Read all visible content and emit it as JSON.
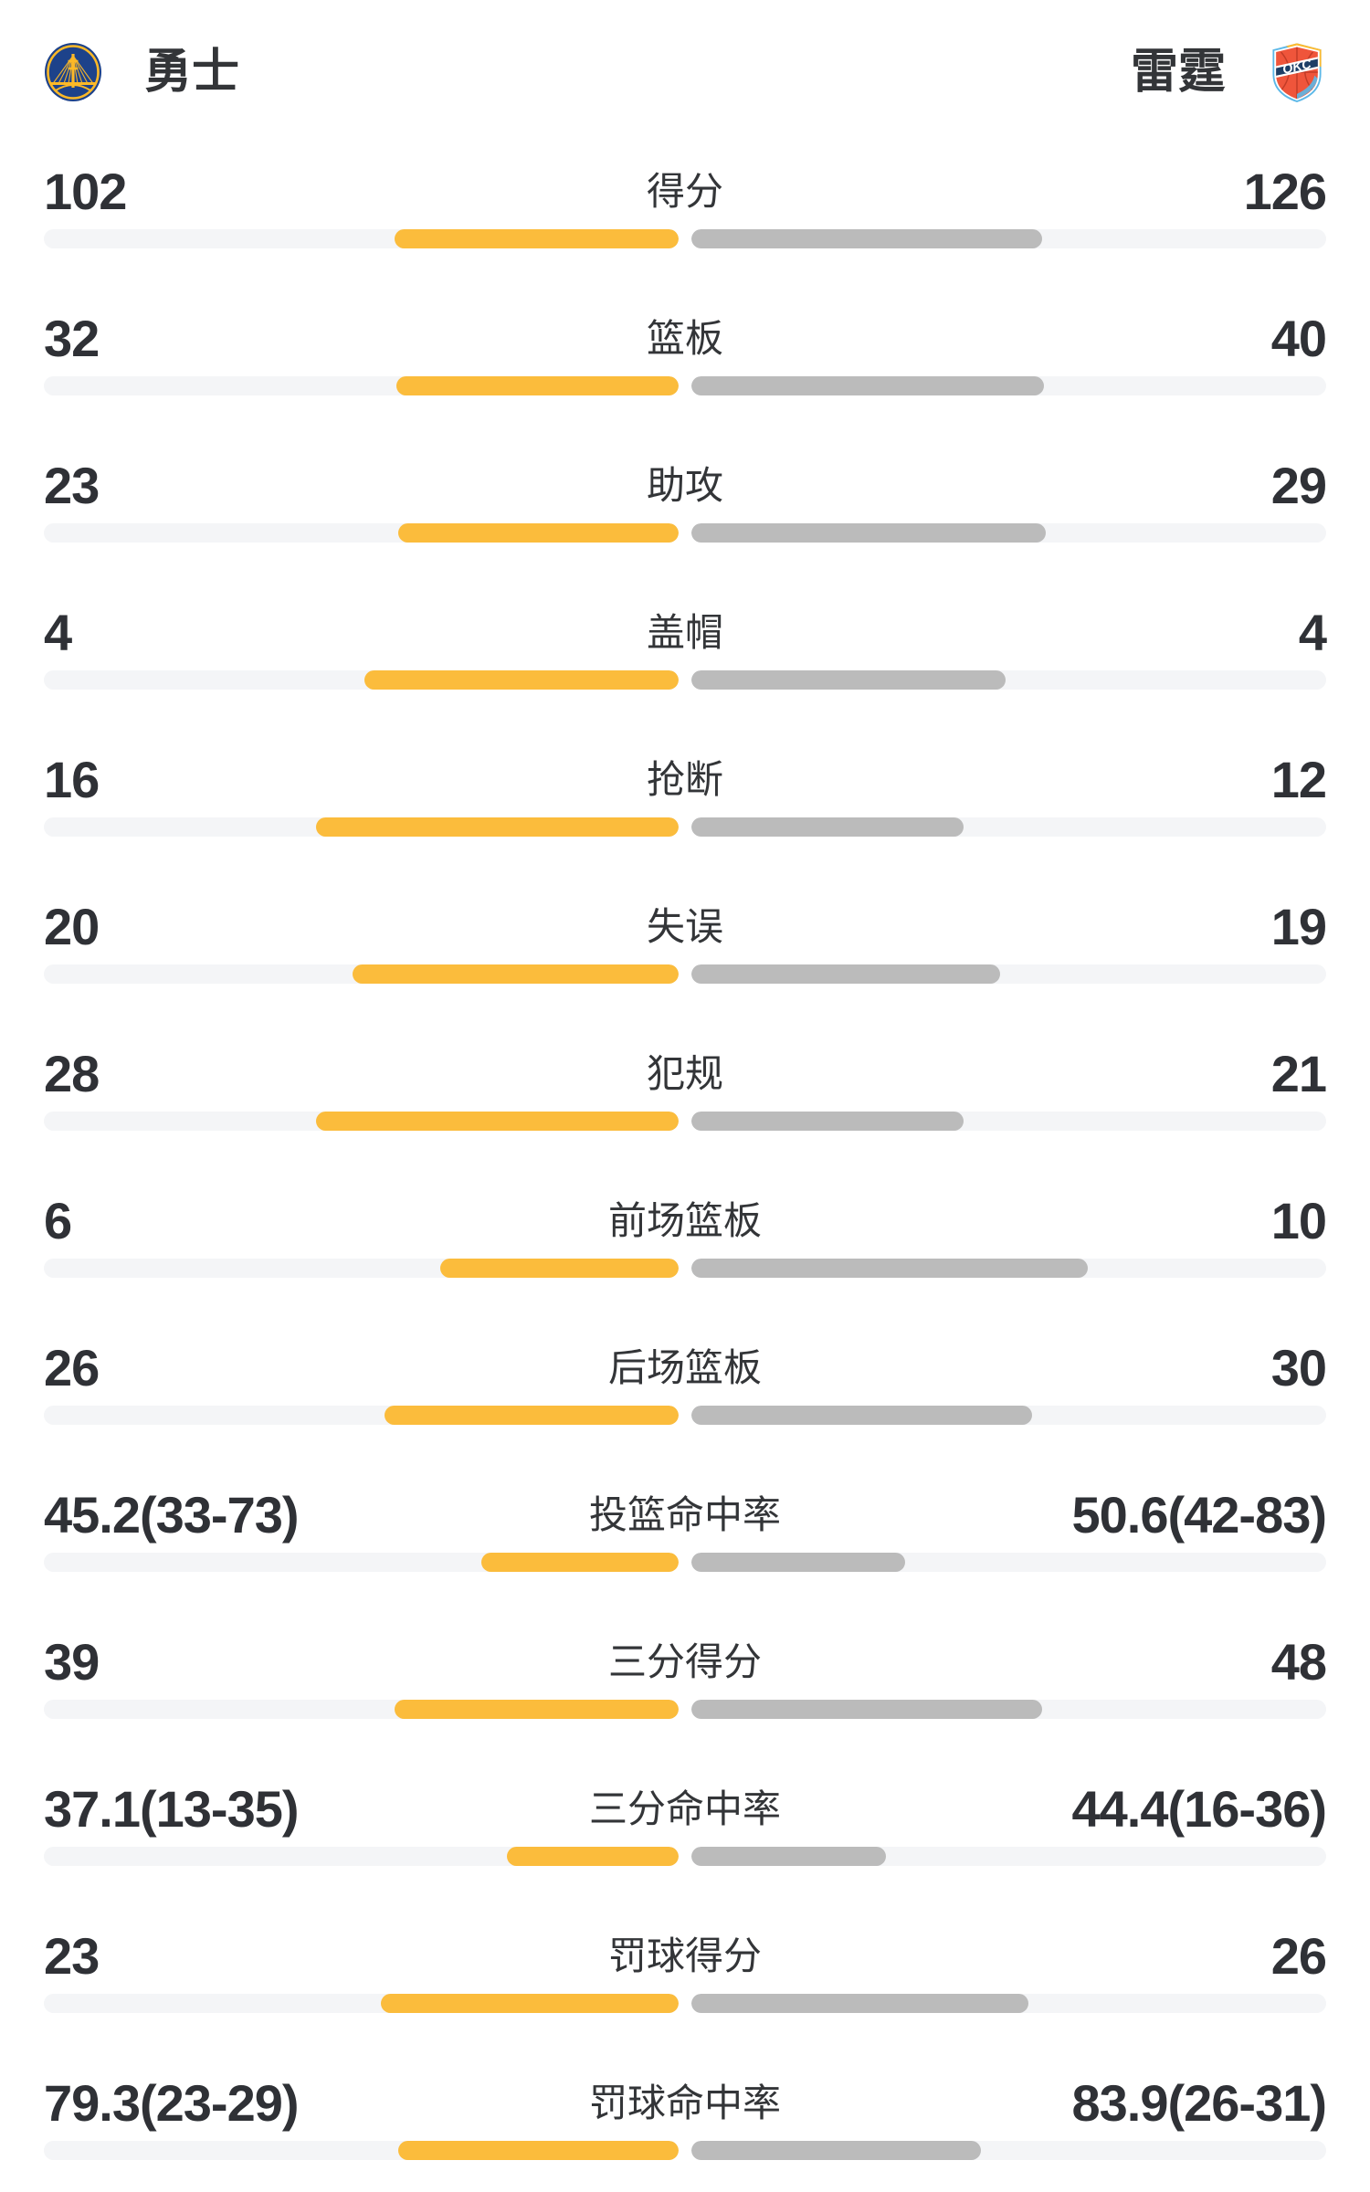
{
  "header": {
    "home": {
      "name": "勇士"
    },
    "away": {
      "name": "雷霆"
    }
  },
  "icons": {
    "home_logo": "warriors-bridge-crest",
    "away_logo": "okc-thunder-shield"
  },
  "colors": {
    "home_bar": "#fbbc3c",
    "away_bar": "#bbbbbb",
    "bar_track": "#f4f5f7",
    "text": "#2f3136",
    "warriors_blue": "#1d428a",
    "warriors_gold": "#fdb927",
    "okc_orange": "#ef553b",
    "okc_blue": "#5cb8e8",
    "okc_navy": "#1d3e66",
    "okc_yellow": "#fdbb30"
  },
  "stats": {
    "rows": [
      {
        "label": "得分",
        "home": "102",
        "away": "126",
        "home_bar_pct": 44.7,
        "away_bar_pct": 55.3
      },
      {
        "label": "篮板",
        "home": "32",
        "away": "40",
        "home_bar_pct": 44.4,
        "away_bar_pct": 55.6
      },
      {
        "label": "助攻",
        "home": "23",
        "away": "29",
        "home_bar_pct": 44.2,
        "away_bar_pct": 55.8
      },
      {
        "label": "盖帽",
        "home": "4",
        "away": "4",
        "home_bar_pct": 49.5,
        "away_bar_pct": 49.5
      },
      {
        "label": "抢断",
        "home": "16",
        "away": "12",
        "home_bar_pct": 57.1,
        "away_bar_pct": 42.9
      },
      {
        "label": "失误",
        "home": "20",
        "away": "19",
        "home_bar_pct": 51.3,
        "away_bar_pct": 48.7
      },
      {
        "label": "犯规",
        "home": "28",
        "away": "21",
        "home_bar_pct": 57.1,
        "away_bar_pct": 42.9
      },
      {
        "label": "前场篮板",
        "home": "6",
        "away": "10",
        "home_bar_pct": 37.5,
        "away_bar_pct": 62.5
      },
      {
        "label": "后场篮板",
        "home": "26",
        "away": "30",
        "home_bar_pct": 46.4,
        "away_bar_pct": 53.6
      },
      {
        "label": "投篮命中率",
        "home": "45.2(33-73)",
        "away": "50.6(42-83)",
        "home_bar_pct": 31.1,
        "away_bar_pct": 33.6
      },
      {
        "label": "三分得分",
        "home": "39",
        "away": "48",
        "home_bar_pct": 44.8,
        "away_bar_pct": 55.2
      },
      {
        "label": "三分命中率",
        "home": "37.1(13-35)",
        "away": "44.4(16-36)",
        "home_bar_pct": 27.1,
        "away_bar_pct": 30.7
      },
      {
        "label": "罚球得分",
        "home": "23",
        "away": "26",
        "home_bar_pct": 46.9,
        "away_bar_pct": 53.1
      },
      {
        "label": "罚球命中率",
        "home": "79.3(23-29)",
        "away": "83.9(26-31)",
        "home_bar_pct": 44.2,
        "away_bar_pct": 45.6
      }
    ]
  },
  "chart_data": {
    "type": "bar",
    "orientation": "paired-horizontal",
    "categories": [
      "得分",
      "篮板",
      "助攻",
      "盖帽",
      "抢断",
      "失误",
      "犯规",
      "前场篮板",
      "后场篮板",
      "投篮命中率",
      "三分得分",
      "三分命中率",
      "罚球得分",
      "罚球命中率"
    ],
    "series": [
      {
        "name": "勇士",
        "values": [
          102,
          32,
          23,
          4,
          16,
          20,
          28,
          6,
          26,
          45.2,
          39,
          37.1,
          23,
          79.3
        ]
      },
      {
        "name": "雷霆",
        "values": [
          126,
          40,
          29,
          4,
          12,
          19,
          21,
          10,
          30,
          50.6,
          48,
          44.4,
          26,
          83.9
        ]
      }
    ],
    "value_labels": {
      "勇士": [
        "102",
        "32",
        "23",
        "4",
        "16",
        "20",
        "28",
        "6",
        "26",
        "45.2(33-73)",
        "39",
        "37.1(13-35)",
        "23",
        "79.3(23-29)"
      ],
      "雷霆": [
        "126",
        "40",
        "29",
        "4",
        "12",
        "19",
        "21",
        "10",
        "30",
        "50.6(42-83)",
        "48",
        "44.4(16-36)",
        "26",
        "83.9(26-31)"
      ]
    },
    "legend_position": "top",
    "grid": false
  }
}
